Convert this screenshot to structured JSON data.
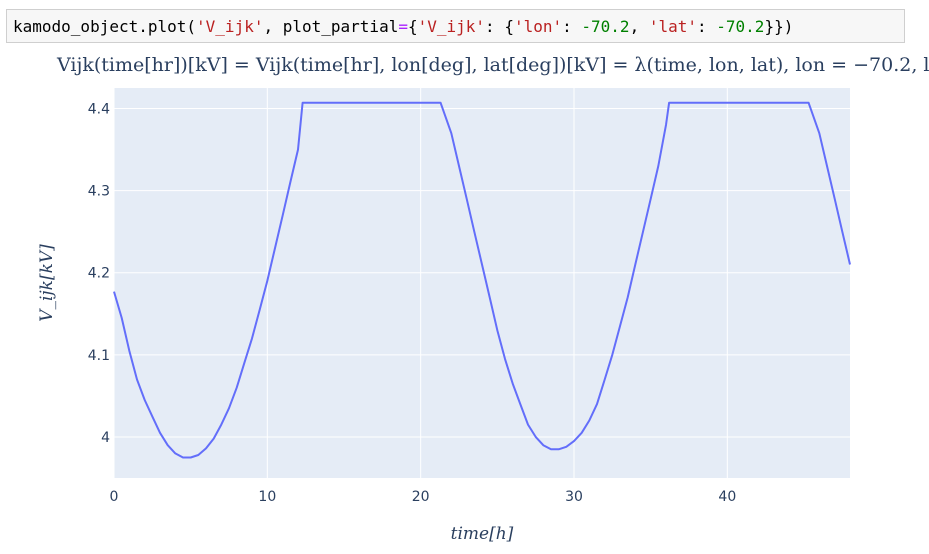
{
  "code": {
    "parts": [
      {
        "text": "kamodo_object.plot(",
        "kind": "plain"
      },
      {
        "text": "'V_ijk'",
        "kind": "str"
      },
      {
        "text": ", plot_partial",
        "kind": "plain"
      },
      {
        "text": "=",
        "kind": "op"
      },
      {
        "text": "{",
        "kind": "plain"
      },
      {
        "text": "'V_ijk'",
        "kind": "str"
      },
      {
        "text": ": {",
        "kind": "plain"
      },
      {
        "text": "'lon'",
        "kind": "str"
      },
      {
        "text": ": ",
        "kind": "plain"
      },
      {
        "text": "-70.2",
        "kind": "num"
      },
      {
        "text": ", ",
        "kind": "plain"
      },
      {
        "text": "'lat'",
        "kind": "str"
      },
      {
        "text": ": ",
        "kind": "plain"
      },
      {
        "text": "-70.2",
        "kind": "num"
      },
      {
        "text": "}})",
        "kind": "plain"
      }
    ]
  },
  "chart_data": {
    "type": "line",
    "title": "Vijk(time[hr])[kV] = Vijk(time[hr], lon[deg], lat[deg])[kV] = λ(time, lon, lat), lon = −70.2, l",
    "xlabel": "time[h]",
    "ylabel": "V_ijk[kV]",
    "xlim": [
      0,
      48
    ],
    "ylim": [
      3.95,
      4.425
    ],
    "xticks": [
      0,
      10,
      20,
      30,
      40
    ],
    "xtick_labels": [
      "0",
      "10",
      "20",
      "30",
      "40"
    ],
    "yticks": [
      4.0,
      4.1,
      4.2,
      4.3,
      4.4
    ],
    "ytick_labels": [
      "4",
      "4.1",
      "4.2",
      "4.3",
      "4.4"
    ],
    "grid": true,
    "line_color": "#636efa",
    "plot_bg": "#e5ecf6",
    "series": [
      {
        "x": [
          0,
          0.5,
          1,
          1.5,
          2,
          2.5,
          3,
          3.5,
          4,
          4.5,
          5,
          5.5,
          6,
          6.5,
          7,
          7.5,
          8,
          8.5,
          9,
          9.5,
          10,
          10.5,
          11,
          11.5,
          12,
          12.3,
          14,
          16,
          18,
          20,
          21,
          21.3,
          22,
          22.5,
          23,
          23.5,
          24,
          24.5,
          25,
          25.5,
          26,
          26.5,
          27,
          27.5,
          28,
          28.5,
          29,
          29.5,
          30,
          30.5,
          31,
          31.5,
          32,
          32.5,
          33,
          33.5,
          34,
          34.5,
          35,
          35.5,
          36,
          36.2,
          38,
          40,
          42,
          44,
          45,
          45.3,
          46,
          46.5,
          47,
          47.5,
          48
        ],
        "values": [
          4.177,
          4.145,
          4.105,
          4.07,
          4.045,
          4.025,
          4.005,
          3.99,
          3.98,
          3.975,
          3.975,
          3.978,
          3.986,
          3.998,
          4.015,
          4.035,
          4.06,
          4.09,
          4.12,
          4.155,
          4.19,
          4.23,
          4.27,
          4.31,
          4.35,
          4.407,
          4.407,
          4.407,
          4.407,
          4.407,
          4.407,
          4.407,
          4.37,
          4.33,
          4.29,
          4.25,
          4.21,
          4.17,
          4.13,
          4.095,
          4.065,
          4.04,
          4.015,
          4.0,
          3.99,
          3.985,
          3.985,
          3.988,
          3.995,
          4.005,
          4.02,
          4.04,
          4.07,
          4.1,
          4.135,
          4.17,
          4.21,
          4.25,
          4.29,
          4.33,
          4.38,
          4.407,
          4.407,
          4.407,
          4.407,
          4.407,
          4.407,
          4.407,
          4.37,
          4.33,
          4.29,
          4.25,
          4.21
        ]
      }
    ]
  }
}
